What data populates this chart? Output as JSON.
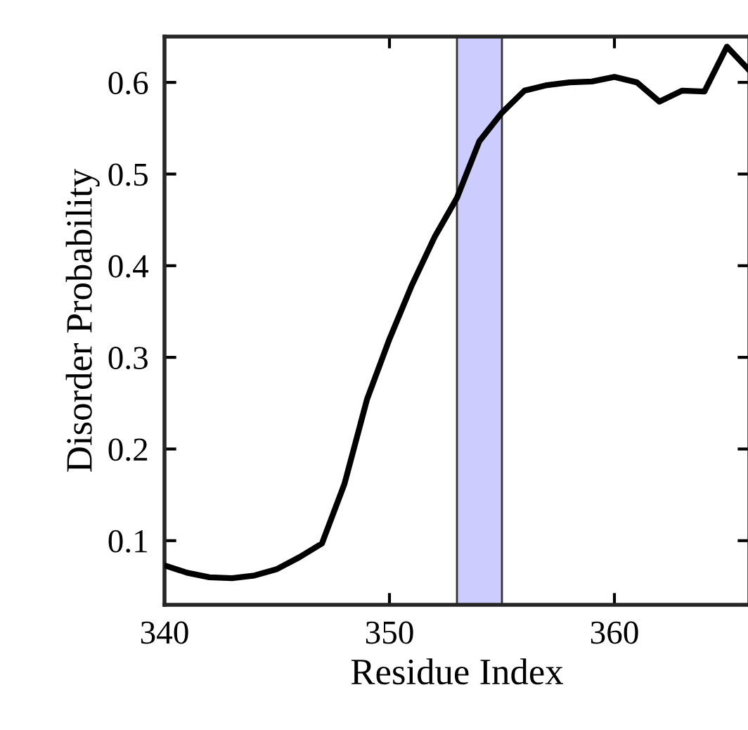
{
  "chart_data": {
    "type": "line",
    "xlabel": "Residue Index",
    "ylabel": "Disorder Probability",
    "x": [
      340,
      341,
      342,
      343,
      344,
      345,
      346,
      347,
      348,
      349,
      350,
      351,
      352,
      353,
      354,
      355,
      356,
      357,
      358,
      359,
      360,
      361,
      362,
      363,
      364,
      365,
      366
    ],
    "series": [
      {
        "color": "#000000",
        "values": [
          0.073,
          0.065,
          0.06,
          0.059,
          0.062,
          0.069,
          0.082,
          0.097,
          0.162,
          0.254,
          0.32,
          0.379,
          0.431,
          0.474,
          0.536,
          0.567,
          0.591,
          0.597,
          0.6,
          0.601,
          0.606,
          0.6,
          0.579,
          0.591,
          0.59,
          0.639,
          0.613
        ]
      }
    ],
    "xlim": [
      340,
      366
    ],
    "ylim": [
      0.03,
      0.65
    ],
    "xticks": [
      340,
      350,
      360
    ],
    "yticks": [
      0.1,
      0.2,
      0.3,
      0.4,
      0.5,
      0.6
    ],
    "bands": [
      {
        "axis": "x",
        "from": 353,
        "to": 355,
        "color": "#ccccff"
      }
    ],
    "grid": false,
    "legend": false
  }
}
